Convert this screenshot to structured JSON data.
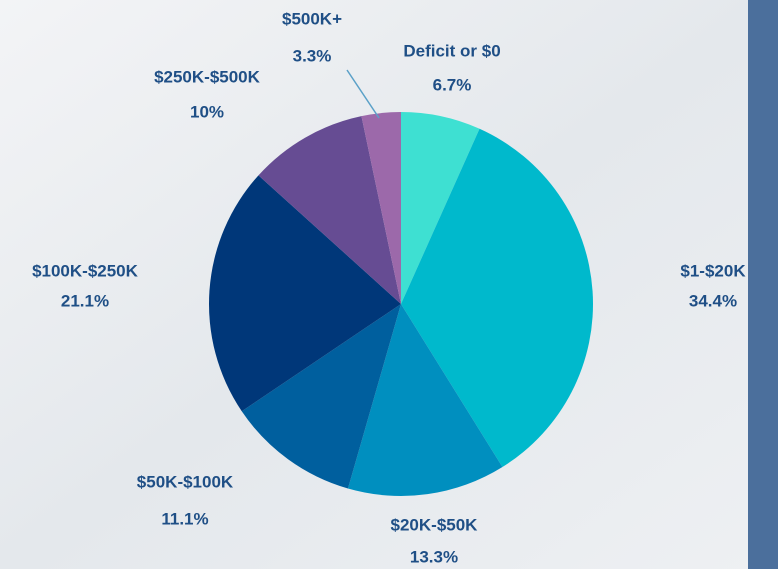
{
  "chart_data": {
    "type": "pie",
    "categories": [
      "Deficit or $0",
      "$1-$20K",
      "$20K-$50K",
      "$50K-$100K",
      "$100K-$250K",
      "$250K-$500K",
      "$500K+"
    ],
    "values": [
      6.7,
      34.4,
      13.3,
      11.1,
      21.1,
      10,
      3.3
    ],
    "value_labels": [
      "6.7%",
      "34.4%",
      "13.3%",
      "11.1%",
      "21.1%",
      "10%",
      "3.3%"
    ],
    "colors": [
      "#3ee0d2",
      "#00b9cc",
      "#008fbf",
      "#005f9e",
      "#003779",
      "#664c93",
      "#9c69aa"
    ]
  }
}
